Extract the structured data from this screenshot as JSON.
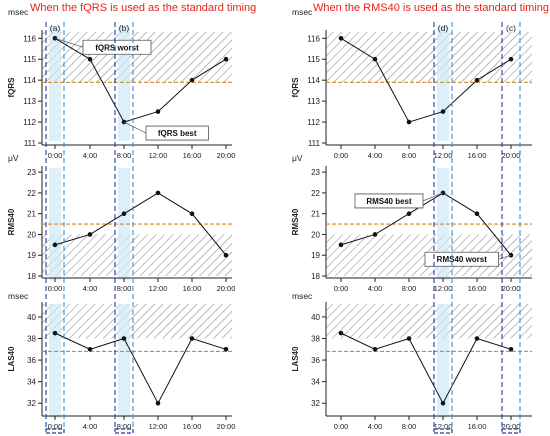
{
  "titles": {
    "left": "When the fQRS is used as the standard timing",
    "right": "When the RMS40 is used as the standard timing"
  },
  "units": {
    "fqrs": "msec",
    "rms": "μV",
    "las": "msec"
  },
  "ylabels": {
    "fqrs": "fQRS",
    "rms": "RMS40",
    "las": "LAS40"
  },
  "colors": {
    "line": "#111111",
    "threshold": "#d98a1f",
    "dash": "#1f3f9c",
    "band": "#cfe8f7",
    "hatch": "#8a8a8a"
  },
  "chart_data": [
    {
      "type": "line",
      "panel": "left",
      "metric": "fQRS",
      "categories": [
        "0:00",
        "4:00",
        "8:00",
        "12:00",
        "16:00",
        "20:00"
      ],
      "values": [
        116,
        115,
        112,
        112.5,
        114,
        115
      ],
      "ylim": [
        111,
        116.3
      ],
      "yticks": [
        111,
        112,
        113,
        114,
        115,
        116
      ],
      "threshold": 113.9,
      "hatch": [
        113.9,
        116.3
      ],
      "annotations": [
        {
          "text": "fQRS worst",
          "point_index": 0
        },
        {
          "text": "fQRS best",
          "point_index": 2
        }
      ],
      "markers": [
        {
          "label": "(a)",
          "center_index": 0,
          "band": true
        },
        {
          "label": "(b)",
          "center_index": 2,
          "band": true
        }
      ]
    },
    {
      "type": "line",
      "panel": "left",
      "metric": "RMS40",
      "categories": [
        "0:00",
        "4:00",
        "8:00",
        "12:00",
        "16:00",
        "20:00"
      ],
      "values": [
        19.5,
        20,
        21,
        22,
        21,
        19
      ],
      "ylim": [
        18,
        23.2
      ],
      "yticks": [
        18,
        19,
        20,
        21,
        22,
        23
      ],
      "threshold": 20.5,
      "hatch": [
        18,
        20
      ],
      "annotations": [],
      "markers": [
        {
          "label": "",
          "center_index": 0,
          "band": true
        },
        {
          "label": "",
          "center_index": 2,
          "band": true
        }
      ]
    },
    {
      "type": "line",
      "panel": "left",
      "metric": "LAS40",
      "categories": [
        "0:00",
        "4:00",
        "8:00",
        "12:00",
        "16:00",
        "20:00"
      ],
      "values": [
        38.5,
        37,
        38,
        32,
        38,
        37
      ],
      "ylim": [
        31,
        41.2
      ],
      "yticks": [
        32,
        34,
        36,
        38,
        40
      ],
      "threshold": 36.8,
      "hatch": [
        38,
        41.2
      ],
      "annotations": [],
      "markers": [
        {
          "label": "",
          "center_index": 0,
          "band": true
        },
        {
          "label": "",
          "center_index": 2,
          "band": true
        }
      ]
    },
    {
      "type": "line",
      "panel": "right",
      "metric": "fQRS",
      "categories": [
        "0:00",
        "4:00",
        "8:00",
        "12:00",
        "16:00",
        "20:00"
      ],
      "values": [
        116,
        115,
        112,
        112.5,
        114,
        115
      ],
      "ylim": [
        111,
        116.3
      ],
      "yticks": [
        111,
        112,
        113,
        114,
        115,
        116
      ],
      "threshold": 113.9,
      "hatch": [
        113.9,
        116.3
      ],
      "annotations": [],
      "markers": [
        {
          "label": "(d)",
          "center_index": 3,
          "band": true
        },
        {
          "label": "(c)",
          "center_index": 5,
          "band": false
        }
      ]
    },
    {
      "type": "line",
      "panel": "right",
      "metric": "RMS40",
      "categories": [
        "0:00",
        "4:00",
        "8:00",
        "12:00",
        "16:00",
        "20:00"
      ],
      "values": [
        19.5,
        20,
        21,
        22,
        21,
        19
      ],
      "ylim": [
        18,
        23.2
      ],
      "yticks": [
        18,
        19,
        20,
        21,
        22,
        23
      ],
      "threshold": 20.5,
      "hatch": [
        18,
        20
      ],
      "annotations": [
        {
          "text": "RMS40 best",
          "point_index": 3
        },
        {
          "text": "RMS40 worst",
          "point_index": 5
        }
      ],
      "markers": [
        {
          "label": "",
          "center_index": 3,
          "band": true
        },
        {
          "label": "",
          "center_index": 5,
          "band": false
        }
      ]
    },
    {
      "type": "line",
      "panel": "right",
      "metric": "LAS40",
      "categories": [
        "0:00",
        "4:00",
        "8:00",
        "12:00",
        "16:00",
        "20:00"
      ],
      "values": [
        38.5,
        37,
        38,
        32,
        38,
        37
      ],
      "ylim": [
        31,
        41.2
      ],
      "yticks": [
        32,
        34,
        36,
        38,
        40
      ],
      "threshold": 36.8,
      "hatch": [
        38,
        41.2
      ],
      "annotations": [],
      "markers": [
        {
          "label": "",
          "center_index": 3,
          "band": true
        },
        {
          "label": "",
          "center_index": 5,
          "band": false
        }
      ]
    }
  ]
}
